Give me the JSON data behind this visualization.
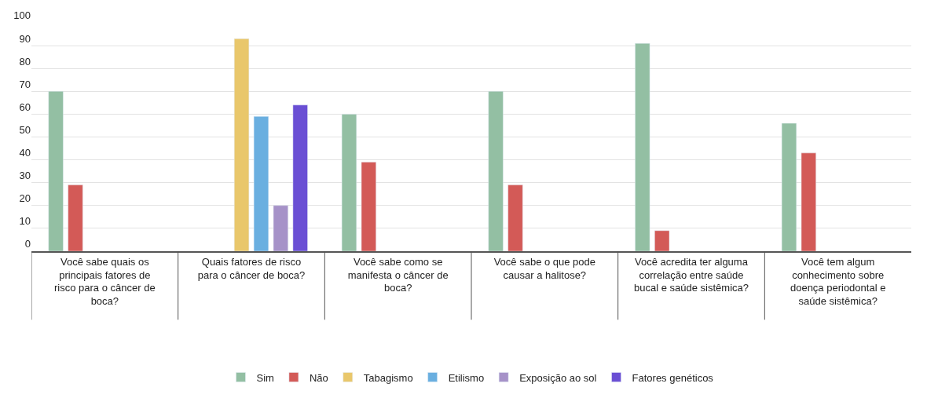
{
  "chart_data": {
    "type": "bar",
    "categories": [
      "Você sabe quais os principais fatores de risco para o câncer de boca?",
      "Quais fatores de risco para o câncer de boca?",
      "Você sabe como se manifesta o câncer de boca?",
      "Você sabe o que pode causar a halitose?",
      "Você acredita ter alguma correlação entre saúde bucal e saúde sistêmica?",
      "Você tem algum conhecimento sobre doença periodontal e saúde sistêmica?"
    ],
    "series": [
      {
        "name": "Sim",
        "color": "#93bfa3",
        "values": [
          70,
          null,
          60,
          70,
          91,
          56
        ]
      },
      {
        "name": "Não",
        "color": "#d35a57",
        "values": [
          29,
          null,
          39,
          29,
          9,
          43
        ]
      },
      {
        "name": "Tabagismo",
        "color": "#e9c76b",
        "values": [
          null,
          93,
          null,
          null,
          null,
          null
        ]
      },
      {
        "name": "Etilismo",
        "color": "#6aafe0",
        "values": [
          null,
          59,
          null,
          null,
          null,
          null
        ]
      },
      {
        "name": "Exposição ao sol",
        "color": "#a692c8",
        "values": [
          null,
          20,
          null,
          null,
          null,
          null
        ]
      },
      {
        "name": "Fatores genéticos",
        "color": "#6a4fd4",
        "values": [
          null,
          64,
          null,
          null,
          null,
          null
        ]
      }
    ],
    "ylim": [
      0,
      100
    ],
    "yticks": [
      0,
      10,
      20,
      30,
      40,
      50,
      60,
      70,
      80,
      90,
      100
    ],
    "grid": "y",
    "legend": "bottom"
  }
}
